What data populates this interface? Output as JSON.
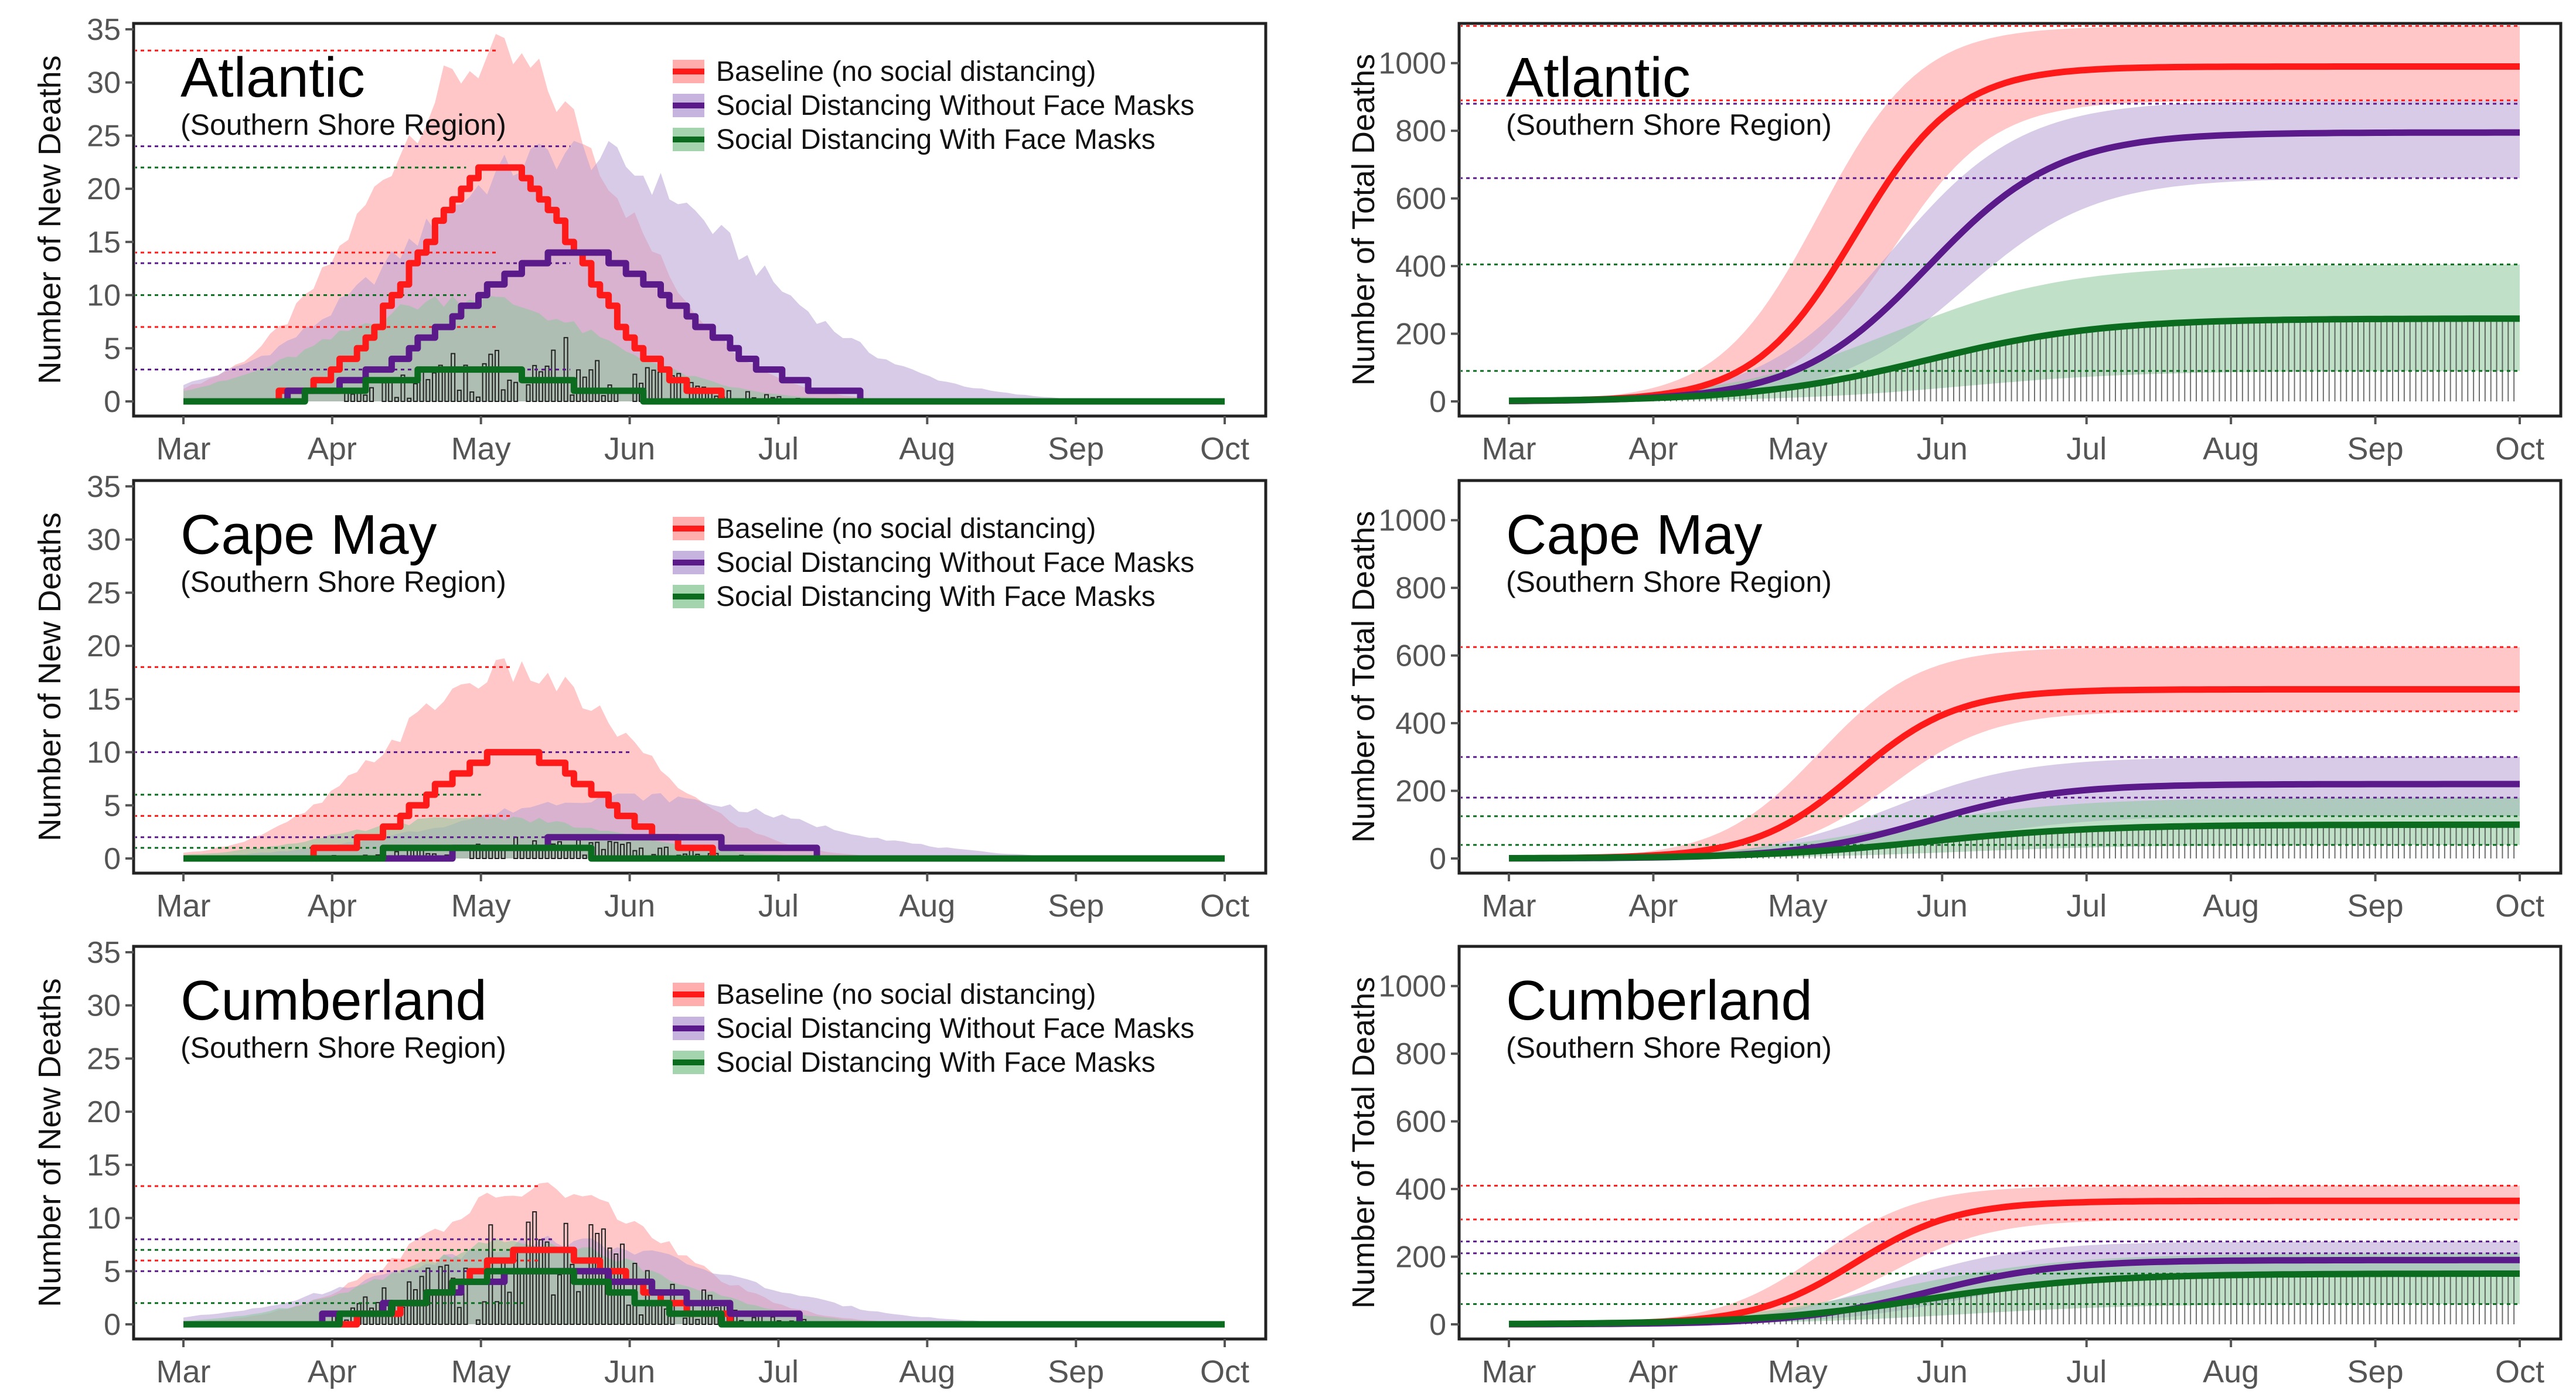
{
  "figure": {
    "months": [
      "Mar",
      "Apr",
      "May",
      "Jun",
      "Jul",
      "Aug",
      "Sep",
      "Oct"
    ],
    "legend": [
      {
        "label": "Baseline (no social distancing)",
        "color": "#ff1a1a",
        "band": "#ff9999"
      },
      {
        "label": "Social Distancing Without Face Masks",
        "color": "#5b1a8a",
        "band": "#b8a0d6"
      },
      {
        "label": "Social Distancing With Face Masks",
        "color": "#0b6b1f",
        "band": "#8cc99a"
      }
    ],
    "new_deaths_ylabel": "Number of New Deaths",
    "total_deaths_ylabel": "Number of Total Deaths",
    "subtitle": "(Southern Shore Region)"
  },
  "chart_data": [
    {
      "type": "line",
      "county": "Atlantic",
      "metric": "new",
      "title": "Atlantic",
      "subtitle": "(Southern Shore Region)",
      "xlabel": "",
      "ylabel": "Number of New Deaths",
      "ylim": [
        0,
        35
      ],
      "yticks": [
        0,
        5,
        10,
        15,
        20,
        25,
        30,
        35
      ],
      "x": [
        "Mar",
        "Apr",
        "May",
        "Jun",
        "Jul",
        "Aug",
        "Sep",
        "Oct"
      ],
      "series": [
        {
          "name": "Baseline (no social distancing)",
          "peak": 22,
          "peak_month": 2.1,
          "upper": 33
        },
        {
          "name": "Social Distancing Without Face Masks",
          "peak": 14,
          "peak_month": 2.6,
          "upper": 24
        },
        {
          "name": "Social Distancing With Face Masks",
          "peak": 3,
          "peak_month": 1.9,
          "upper": 10
        }
      ],
      "reference_lines": [
        33,
        24,
        22,
        14,
        13,
        10,
        7,
        3
      ]
    },
    {
      "type": "line",
      "county": "Atlantic",
      "metric": "total",
      "title": "Atlantic",
      "subtitle": "(Southern Shore Region)",
      "xlabel": "",
      "ylabel": "Number of Total Deaths",
      "ylim": [
        0,
        1100
      ],
      "yticks": [
        0,
        200,
        400,
        600,
        800,
        1000
      ],
      "x": [
        "Mar",
        "Apr",
        "May",
        "Jun",
        "Jul",
        "Aug",
        "Sep",
        "Oct"
      ],
      "series": [
        {
          "name": "Baseline (no social distancing)",
          "final": 990,
          "upper": 1110,
          "lower": 890
        },
        {
          "name": "Social Distancing Without Face Masks",
          "final": 795,
          "upper": 890,
          "lower": 660
        },
        {
          "name": "Social Distancing With Face Masks",
          "final": 245,
          "upper": 405,
          "lower": 90
        }
      ],
      "reference_lines": [
        1110,
        890,
        880,
        660,
        405,
        90
      ]
    },
    {
      "type": "line",
      "county": "Cape May",
      "metric": "new",
      "title": "Cape May",
      "subtitle": "(Southern Shore Region)",
      "xlabel": "",
      "ylabel": "Number of New Deaths",
      "ylim": [
        0,
        35
      ],
      "yticks": [
        0,
        5,
        10,
        15,
        20,
        25,
        30,
        35
      ],
      "x": [
        "Mar",
        "Apr",
        "May",
        "Jun",
        "Jul",
        "Aug",
        "Sep",
        "Oct"
      ],
      "series": [
        {
          "name": "Baseline (no social distancing)",
          "peak": 10,
          "peak_month": 2.2,
          "upper": 18
        },
        {
          "name": "Social Distancing Without Face Masks",
          "peak": 2,
          "peak_month": 3.0,
          "upper": 6
        },
        {
          "name": "Social Distancing With Face Masks",
          "peak": 1,
          "peak_month": 2.0,
          "upper": 4
        }
      ],
      "reference_lines": [
        18,
        10,
        6,
        4,
        2,
        1
      ]
    },
    {
      "type": "line",
      "county": "Cape May",
      "metric": "total",
      "title": "Cape May",
      "subtitle": "(Southern Shore Region)",
      "xlabel": "",
      "ylabel": "Number of Total Deaths",
      "ylim": [
        0,
        1100
      ],
      "yticks": [
        0,
        200,
        400,
        600,
        800,
        1000
      ],
      "x": [
        "Mar",
        "Apr",
        "May",
        "Jun",
        "Jul",
        "Aug",
        "Sep",
        "Oct"
      ],
      "series": [
        {
          "name": "Baseline (no social distancing)",
          "final": 500,
          "upper": 625,
          "lower": 435
        },
        {
          "name": "Social Distancing Without Face Masks",
          "final": 220,
          "upper": 300,
          "lower": 125
        },
        {
          "name": "Social Distancing With Face Masks",
          "final": 100,
          "upper": 180,
          "lower": 40
        }
      ],
      "reference_lines": [
        625,
        435,
        300,
        180,
        125,
        40
      ]
    },
    {
      "type": "line",
      "county": "Cumberland",
      "metric": "new",
      "title": "Cumberland",
      "subtitle": "(Southern Shore Region)",
      "xlabel": "",
      "ylabel": "Number of New Deaths",
      "ylim": [
        0,
        35
      ],
      "yticks": [
        0,
        5,
        10,
        15,
        20,
        25,
        30,
        35
      ],
      "x": [
        "Mar",
        "Apr",
        "May",
        "Jun",
        "Jul",
        "Aug",
        "Sep",
        "Oct"
      ],
      "series": [
        {
          "name": "Baseline (no social distancing)",
          "peak": 7,
          "peak_month": 2.4,
          "upper": 13
        },
        {
          "name": "Social Distancing Without Face Masks",
          "peak": 5,
          "peak_month": 2.5,
          "upper": 8
        },
        {
          "name": "Social Distancing With Face Masks",
          "peak": 5,
          "peak_month": 2.3,
          "upper": 8
        }
      ],
      "reference_lines": [
        13,
        8,
        7,
        6,
        5,
        2
      ]
    },
    {
      "type": "line",
      "county": "Cumberland",
      "metric": "total",
      "title": "Cumberland",
      "subtitle": "(Southern Shore Region)",
      "xlabel": "",
      "ylabel": "Number of Total Deaths",
      "ylim": [
        0,
        1100
      ],
      "yticks": [
        0,
        200,
        400,
        600,
        800,
        1000
      ],
      "x": [
        "Mar",
        "Apr",
        "May",
        "Jun",
        "Jul",
        "Aug",
        "Sep",
        "Oct"
      ],
      "series": [
        {
          "name": "Baseline (no social distancing)",
          "final": 365,
          "upper": 410,
          "lower": 310
        },
        {
          "name": "Social Distancing Without Face Masks",
          "final": 190,
          "upper": 245,
          "lower": 150
        },
        {
          "name": "Social Distancing With Face Masks",
          "final": 150,
          "upper": 210,
          "lower": 60
        }
      ],
      "reference_lines": [
        410,
        310,
        245,
        210,
        150,
        60
      ]
    }
  ]
}
